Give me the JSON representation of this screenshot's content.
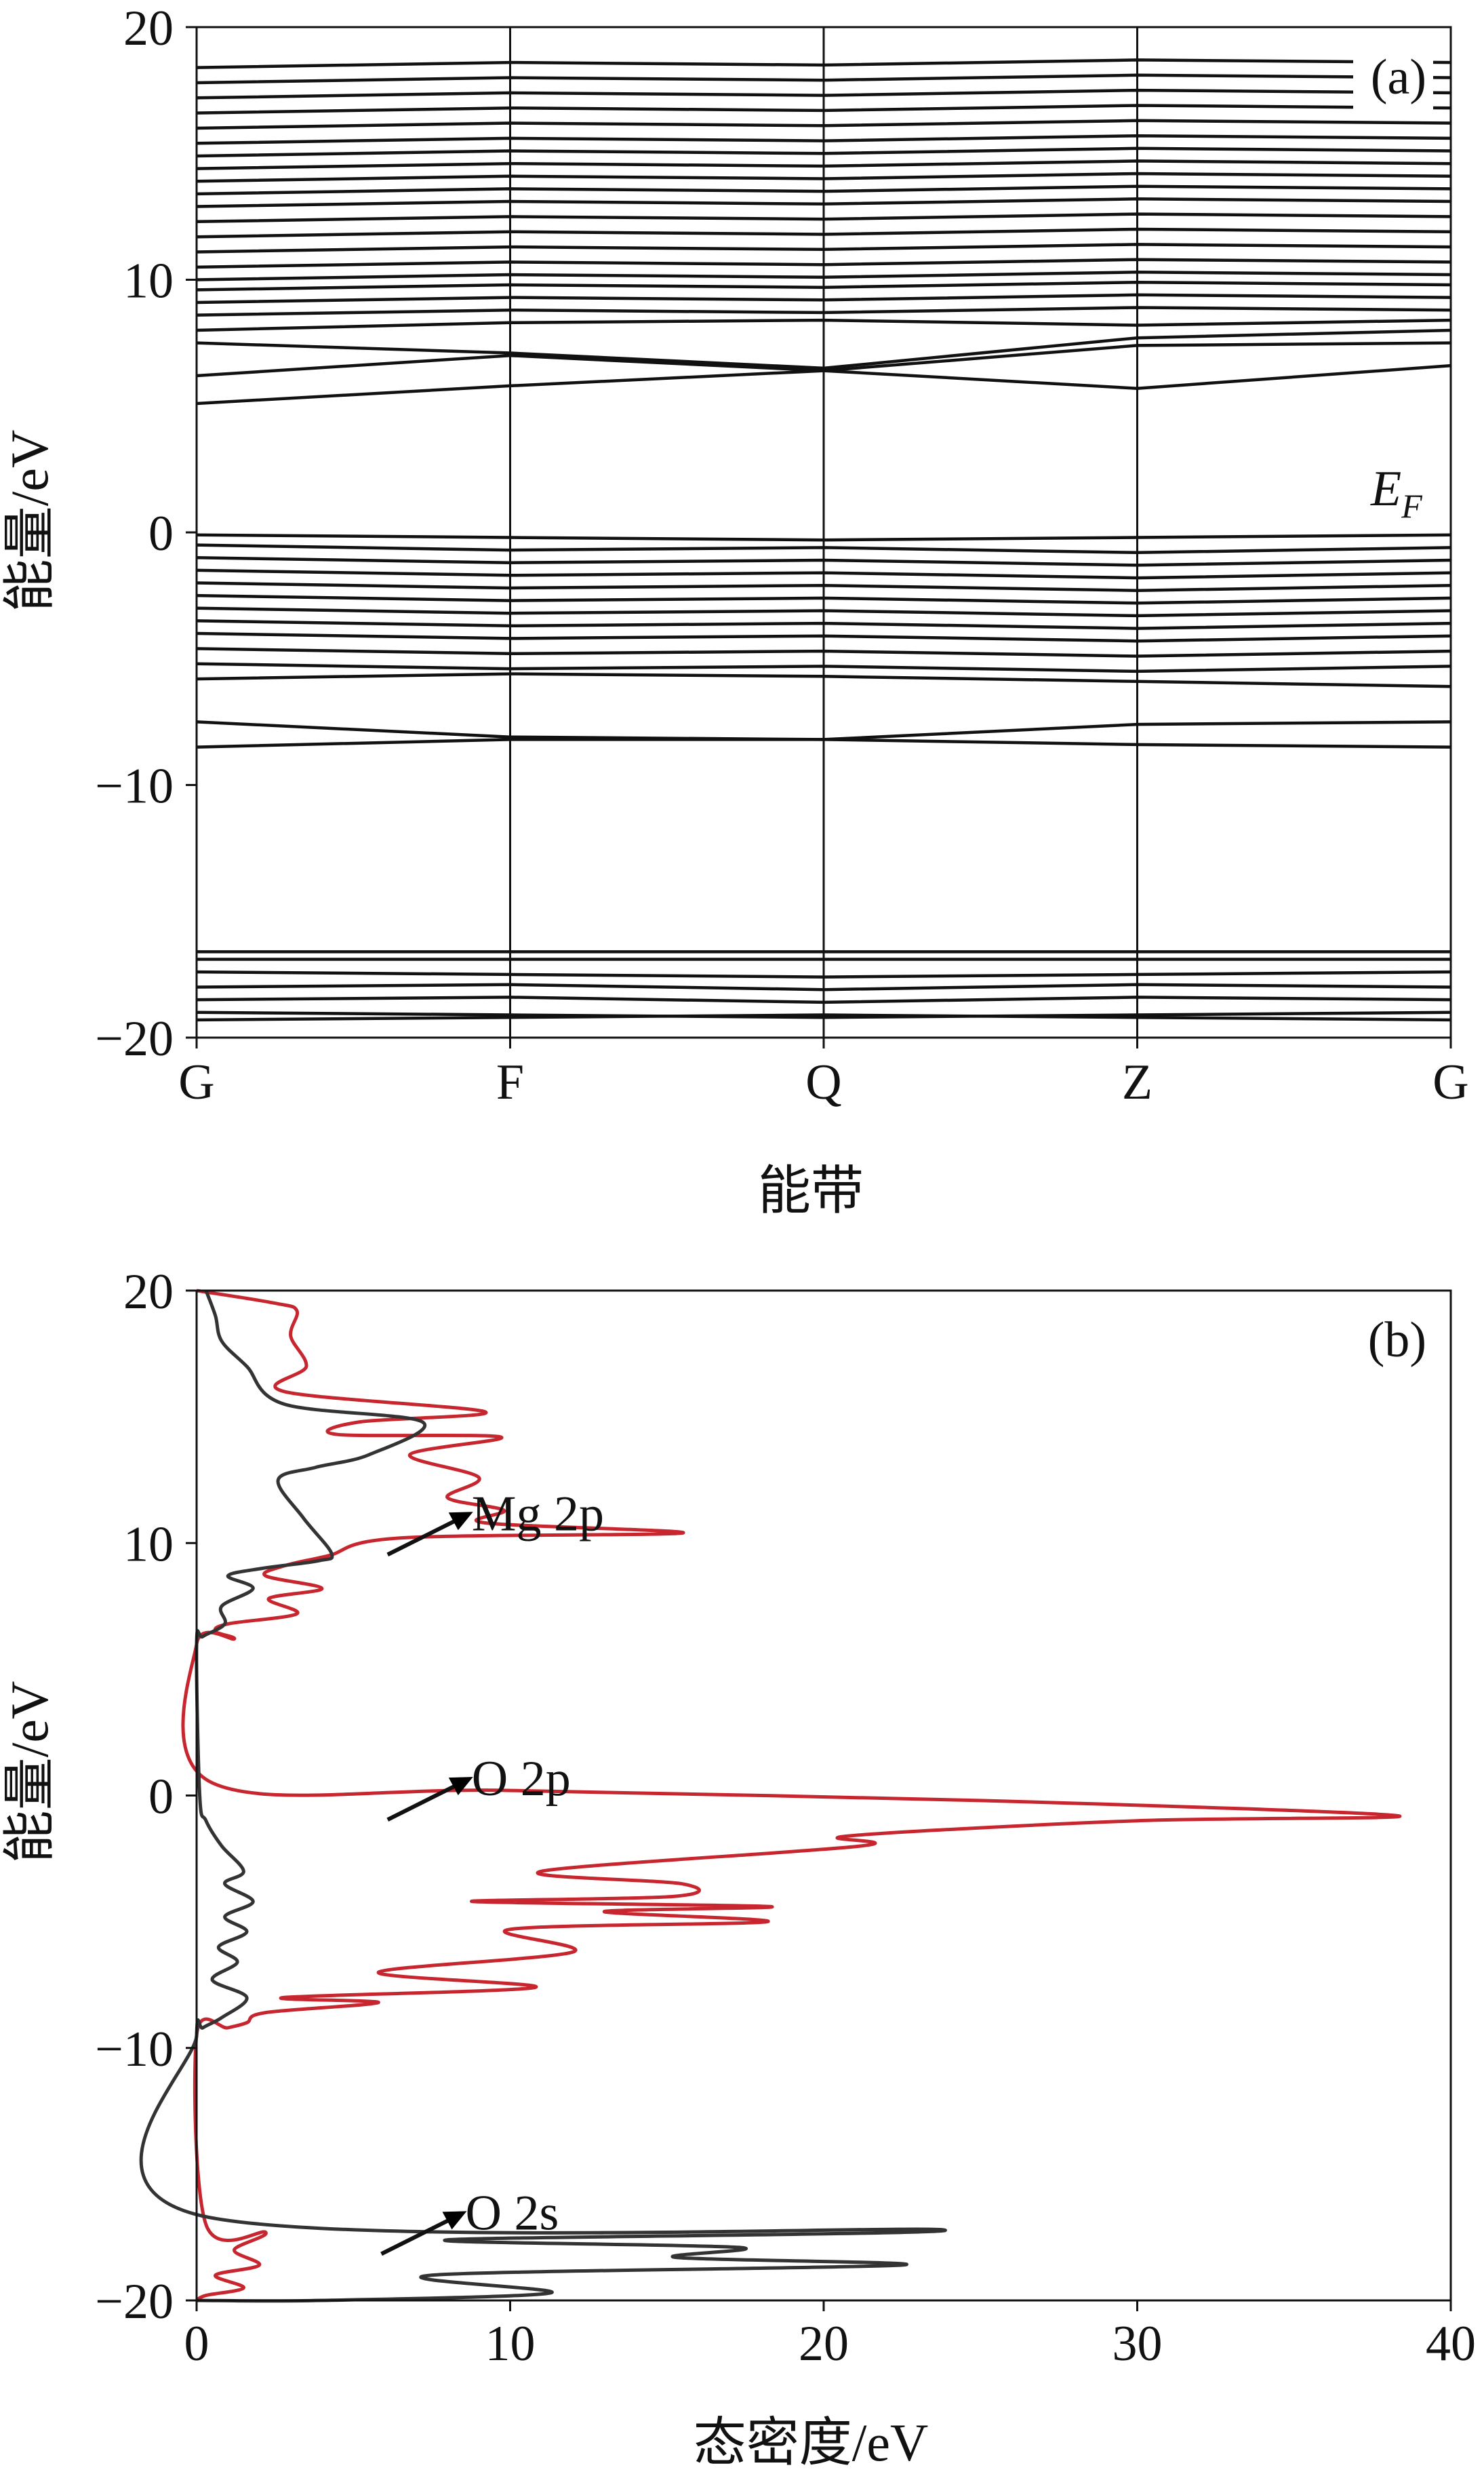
{
  "colors": {
    "band_line": "#111111",
    "dos_mg": "#c8262f",
    "dos_o": "#333333",
    "axis": "#111111",
    "background": "#ffffff"
  },
  "chart_data": [
    {
      "type": "line",
      "panel_label": "(a)",
      "xlabel": "能带",
      "ylabel": "能量/eV",
      "ylim": [
        -20,
        20
      ],
      "yticks": [
        20,
        10,
        0,
        -10,
        -20
      ],
      "ytick_labels": [
        "20",
        "10",
        "0",
        "−10",
        "−20"
      ],
      "kpoints": [
        "G",
        "F",
        "Q",
        "Z",
        "G"
      ],
      "fermi_label": "EF",
      "fermi_label_main": "E",
      "fermi_label_sub": "F",
      "grid": false,
      "series": [
        {
          "values": [
            5.1,
            5.8,
            6.4,
            5.7,
            6.6
          ]
        },
        {
          "values": [
            6.2,
            7.0,
            6.4,
            7.4,
            7.5
          ]
        },
        {
          "values": [
            7.5,
            7.1,
            6.5,
            7.7,
            8.0
          ]
        },
        {
          "values": [
            8.0,
            8.3,
            8.4,
            8.2,
            8.4
          ]
        },
        {
          "values": [
            8.6,
            8.8,
            8.7,
            8.9,
            8.8
          ]
        },
        {
          "values": [
            9.1,
            9.3,
            9.2,
            9.4,
            9.3
          ]
        },
        {
          "values": [
            9.6,
            9.8,
            9.7,
            9.9,
            9.8
          ]
        },
        {
          "values": [
            10.0,
            10.2,
            10.1,
            10.3,
            10.2
          ]
        },
        {
          "values": [
            10.5,
            10.7,
            10.6,
            10.8,
            10.7
          ]
        },
        {
          "values": [
            11.1,
            11.3,
            11.2,
            11.4,
            11.3
          ]
        },
        {
          "values": [
            11.7,
            11.9,
            11.8,
            12.0,
            11.9
          ]
        },
        {
          "values": [
            12.3,
            12.5,
            12.4,
            12.6,
            12.5
          ]
        },
        {
          "values": [
            12.9,
            13.1,
            13.0,
            13.2,
            13.1
          ]
        },
        {
          "values": [
            13.4,
            13.6,
            13.5,
            13.7,
            13.6
          ]
        },
        {
          "values": [
            13.9,
            14.1,
            14.0,
            14.2,
            14.1
          ]
        },
        {
          "values": [
            14.4,
            14.6,
            14.5,
            14.7,
            14.6
          ]
        },
        {
          "values": [
            14.9,
            15.1,
            15.0,
            15.2,
            15.1
          ]
        },
        {
          "values": [
            15.4,
            15.6,
            15.5,
            15.7,
            15.6
          ]
        },
        {
          "values": [
            16.0,
            16.2,
            16.1,
            16.3,
            16.2
          ]
        },
        {
          "values": [
            16.6,
            16.8,
            16.7,
            16.9,
            16.8
          ]
        },
        {
          "values": [
            17.2,
            17.4,
            17.3,
            17.5,
            17.4
          ]
        },
        {
          "values": [
            17.8,
            18.0,
            17.9,
            18.1,
            18.0
          ]
        },
        {
          "values": [
            18.4,
            18.6,
            18.5,
            18.7,
            18.6
          ]
        },
        {
          "values": [
            -0.1,
            -0.2,
            -0.3,
            -0.2,
            -0.1
          ]
        },
        {
          "values": [
            -0.5,
            -0.7,
            -0.6,
            -0.8,
            -0.6
          ]
        },
        {
          "values": [
            -1.0,
            -1.2,
            -1.1,
            -1.3,
            -1.1
          ]
        },
        {
          "values": [
            -1.5,
            -1.7,
            -1.6,
            -1.8,
            -1.6
          ]
        },
        {
          "values": [
            -2.0,
            -2.2,
            -2.1,
            -2.3,
            -2.1
          ]
        },
        {
          "values": [
            -2.5,
            -2.7,
            -2.6,
            -2.8,
            -2.6
          ]
        },
        {
          "values": [
            -3.0,
            -3.2,
            -3.1,
            -3.3,
            -3.1
          ]
        },
        {
          "values": [
            -3.5,
            -3.7,
            -3.6,
            -3.8,
            -3.6
          ]
        },
        {
          "values": [
            -4.0,
            -4.2,
            -4.1,
            -4.3,
            -4.1
          ]
        },
        {
          "values": [
            -4.6,
            -4.8,
            -4.7,
            -4.9,
            -4.7
          ]
        },
        {
          "values": [
            -5.2,
            -5.4,
            -5.3,
            -5.5,
            -5.3
          ]
        },
        {
          "values": [
            -5.8,
            -5.6,
            -5.7,
            -5.9,
            -6.1
          ]
        },
        {
          "values": [
            -7.5,
            -8.1,
            -8.2,
            -7.6,
            -7.5
          ]
        },
        {
          "values": [
            -8.5,
            -8.2,
            -8.2,
            -8.4,
            -8.5
          ]
        },
        {
          "values": [
            -16.6,
            -16.6,
            -16.6,
            -16.6,
            -16.6
          ]
        },
        {
          "values": [
            -16.9,
            -16.9,
            -16.9,
            -16.9,
            -16.9
          ]
        },
        {
          "values": [
            -17.4,
            -17.5,
            -17.6,
            -17.5,
            -17.4
          ]
        },
        {
          "values": [
            -18.0,
            -17.9,
            -18.1,
            -17.9,
            -18.0
          ]
        },
        {
          "values": [
            -18.5,
            -18.4,
            -18.6,
            -18.4,
            -18.5
          ]
        },
        {
          "values": [
            -19.0,
            -19.1,
            -19.2,
            -19.1,
            -19.0
          ]
        },
        {
          "values": [
            -19.3,
            -19.2,
            -19.1,
            -19.2,
            -19.3
          ]
        }
      ]
    },
    {
      "type": "line",
      "panel_label": "(b)",
      "xlabel": "态密度/eV",
      "ylabel": "能量/eV",
      "xlim": [
        0,
        40
      ],
      "ylim": [
        -20,
        20
      ],
      "xticks": [
        0,
        10,
        20,
        30,
        40
      ],
      "xtick_labels": [
        "0",
        "10",
        "20",
        "30",
        "40"
      ],
      "yticks": [
        20,
        10,
        0,
        -10,
        -20
      ],
      "ytick_labels": [
        "20",
        "10",
        "0",
        "−10",
        "−20"
      ],
      "grid": false,
      "annotations": [
        {
          "text": "Mg 2p",
          "points_to": [
            8.6,
            11.1
          ]
        },
        {
          "text": "O 2p",
          "points_to": [
            8.6,
            0.6
          ]
        },
        {
          "text": "O 2s",
          "points_to": [
            8.4,
            -16.6
          ]
        }
      ],
      "series": [
        {
          "color": "#c8262f",
          "x": [
            0.0,
            2.5,
            3.2,
            3.0,
            3.5,
            2.8,
            9.2,
            5.2,
            4.5,
            9.7,
            6.8,
            9.0,
            8.0,
            9.8,
            9.2,
            15.5,
            6.5,
            4.2,
            2.8,
            2.2,
            4.0,
            2.3,
            3.2,
            1.0,
            0.6,
            1.2,
            0.0,
            0.5,
            10.0,
            25.0,
            38.3,
            30.0,
            20.8,
            21.2,
            11.0,
            15.5,
            15.2,
            8.8,
            18.3,
            13.0,
            18.2,
            10.0,
            12.0,
            5.8,
            10.8,
            2.8,
            5.8,
            2.2,
            1.6,
            1.0,
            0.0,
            0.3,
            2.2,
            1.2,
            2.0,
            0.6,
            1.5,
            0.3,
            0.0
          ],
          "y": [
            20,
            19.5,
            19.2,
            18.2,
            17.0,
            16.0,
            15.2,
            14.8,
            14.3,
            14.2,
            13.5,
            12.6,
            11.8,
            11.3,
            10.8,
            10.4,
            10.2,
            9.5,
            9.1,
            8.7,
            8.2,
            7.8,
            7.2,
            6.8,
            6.5,
            6.2,
            6.0,
            0.5,
            0.2,
            -0.2,
            -0.8,
            -1.0,
            -1.6,
            -2.0,
            -3.0,
            -3.5,
            -4.0,
            -4.2,
            -4.4,
            -4.6,
            -5.0,
            -5.3,
            -6.2,
            -7.0,
            -7.6,
            -8.0,
            -8.2,
            -8.6,
            -9.0,
            -9.2,
            -9.5,
            -17.0,
            -17.3,
            -18.0,
            -18.6,
            -19.0,
            -19.5,
            -19.8,
            -20.0
          ]
        },
        {
          "color": "#333333",
          "x": [
            0.3,
            0.6,
            0.8,
            1.6,
            2.8,
            7.2,
            5.5,
            3.8,
            2.6,
            3.4,
            4.3,
            3.9,
            2.1,
            1.0,
            1.8,
            0.8,
            0.9,
            0.2,
            0.0,
            0.1,
            0.3,
            0.8,
            1.5,
            0.9,
            1.8,
            0.9,
            1.6,
            0.7,
            1.3,
            0.5,
            1.6,
            0.8,
            0.2,
            0.0,
            0.0,
            23.8,
            8.0,
            17.3,
            15.3,
            22.5,
            7.5,
            11.3,
            4.0,
            0.0
          ],
          "y": [
            20.0,
            19.0,
            18.0,
            17.0,
            15.5,
            14.8,
            13.5,
            13.0,
            12.5,
            11.0,
            9.6,
            9.3,
            9.0,
            8.7,
            8.2,
            7.5,
            6.8,
            6.3,
            6.0,
            0.0,
            -1.0,
            -2.0,
            -3.0,
            -3.5,
            -4.2,
            -4.8,
            -5.4,
            -6.0,
            -6.6,
            -7.3,
            -8.0,
            -8.8,
            -9.2,
            -9.5,
            -16.6,
            -17.2,
            -17.6,
            -17.9,
            -18.3,
            -18.6,
            -19.0,
            -19.7,
            -20.0,
            -20.0
          ]
        }
      ]
    }
  ]
}
